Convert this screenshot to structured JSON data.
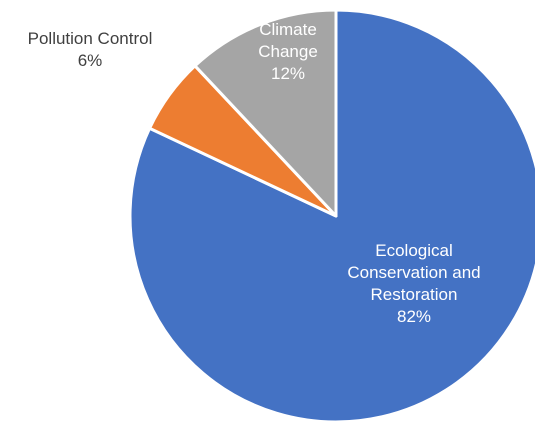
{
  "chart_data": {
    "type": "pie",
    "title": "",
    "slices": [
      {
        "name": "Ecological Conservation and Restoration",
        "label_lines": [
          "Ecological",
          "Conservation and",
          "Restoration"
        ],
        "value": 82,
        "value_label": "82%",
        "color": "#4472C4",
        "label_color": "#ffffff"
      },
      {
        "name": "Pollution Control",
        "label_lines": [
          "Pollution Control"
        ],
        "value": 6,
        "value_label": "6%",
        "color": "#ED7D31",
        "label_color": "#404040"
      },
      {
        "name": "Climate Change",
        "label_lines": [
          "Climate",
          "Change"
        ],
        "value": 12,
        "value_label": "12%",
        "color": "#A5A5A5",
        "label_color": "#ffffff"
      }
    ],
    "start": "12 o'clock",
    "direction": "clockwise",
    "slice_border_color": "#ffffff"
  }
}
